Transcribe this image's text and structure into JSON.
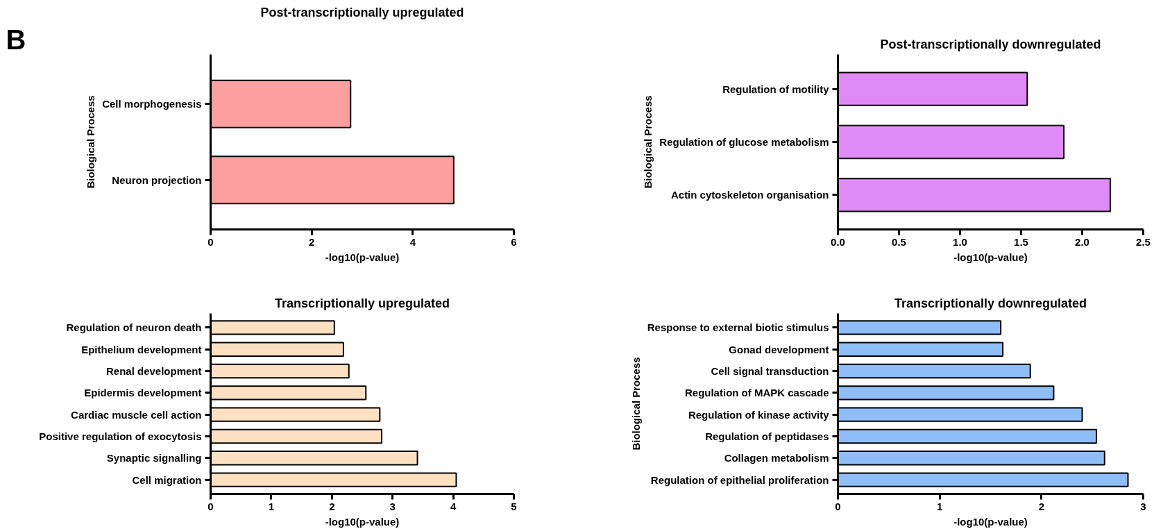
{
  "chart_data": [
    {
      "type": "bar",
      "orientation": "horizontal",
      "title": "Post-transcriptionally upregulated",
      "xlabel": "-log10(p-value)",
      "ylabel": "Biological Process",
      "annotations": [
        "B"
      ],
      "categories": [
        "Cell morphogenesis",
        "Neuron projection"
      ],
      "values": [
        2.77,
        4.81
      ],
      "color": "#fe9f9f",
      "xlim": [
        0,
        6
      ],
      "xticks": [
        0,
        2,
        4,
        6
      ]
    },
    {
      "type": "bar",
      "orientation": "horizontal",
      "title": "Post-transcriptionally downregulated",
      "xlabel": "-log10(p-value)",
      "ylabel": "Biological Process",
      "categories": [
        "Regulation of motility",
        "Regulation of glucose metabolism",
        "Actin cytoskeleton organisation"
      ],
      "values": [
        1.55,
        1.85,
        2.23
      ],
      "color": "#df8af7",
      "xlim": [
        0,
        2.5
      ],
      "xticks": [
        {
          "value": 0,
          "label": "0.0"
        },
        0.5,
        {
          "value": 1,
          "label": "1.0"
        },
        1.5,
        {
          "value": 2,
          "label": "2.0"
        },
        2.5
      ]
    },
    {
      "type": "bar",
      "orientation": "horizontal",
      "title": "Transcriptionally upregulated",
      "xlabel": "-log10(p-value)",
      "categories": [
        "Regulation of neuron death",
        "Epithelium development",
        "Renal development",
        "Epidermis development",
        "Cardiac muscle cell action",
        "Positive regulation of exocytosis",
        "Synaptic signalling",
        "Cell migration"
      ],
      "values": [
        2.04,
        2.19,
        2.28,
        2.56,
        2.79,
        2.82,
        3.41,
        4.05
      ],
      "color": "#fde0c1",
      "xlim": [
        0,
        5
      ],
      "xticks": [
        0,
        1,
        2,
        3,
        4,
        5
      ]
    },
    {
      "type": "bar",
      "orientation": "horizontal",
      "title": "Transcriptionally downregulated",
      "xlabel": "-log10(p-value)",
      "ylabel": "Biological Process",
      "categories": [
        "Response to external biotic stimulus",
        "Gonad development",
        "Cell signal transduction",
        "Regulation of MAPK cascade",
        "Regulation of kinase activity",
        "Regulation of peptidases",
        "Collagen metabolism",
        "Regulation of epithelial proliferation"
      ],
      "values": [
        1.6,
        1.62,
        1.89,
        2.12,
        2.4,
        2.54,
        2.62,
        2.85
      ],
      "color": "#8fbdf8",
      "xlim": [
        0,
        3
      ],
      "xticks": [
        0,
        1,
        2,
        3
      ]
    }
  ]
}
